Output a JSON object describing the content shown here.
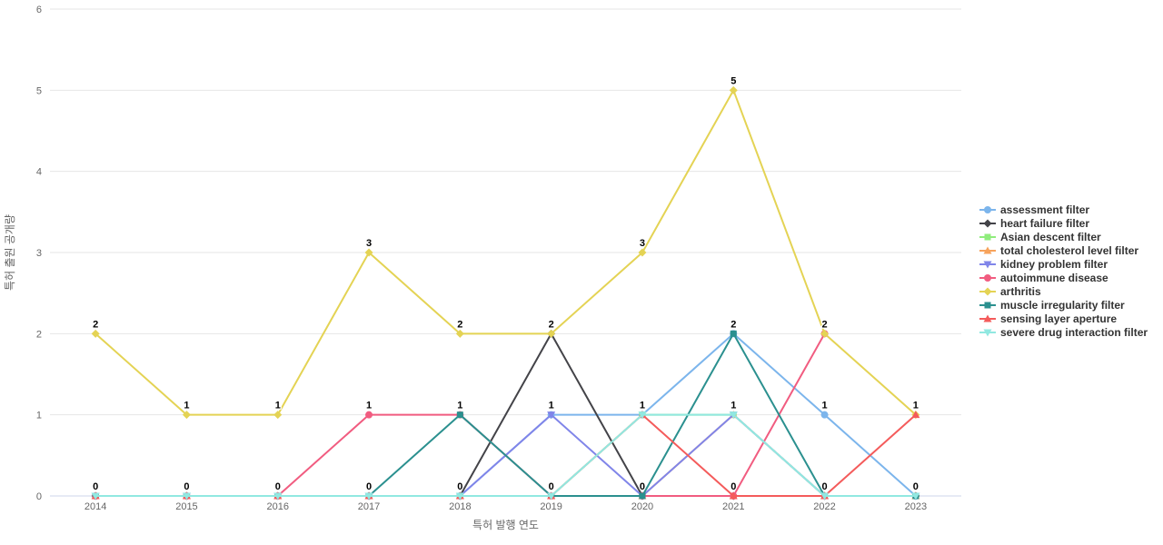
{
  "chart_data": {
    "type": "line",
    "title": "",
    "xlabel": "특허 발행 연도",
    "ylabel": "특허 출원 공개량",
    "categories": [
      "2014",
      "2015",
      "2016",
      "2017",
      "2018",
      "2019",
      "2020",
      "2021",
      "2022",
      "2023"
    ],
    "ylim": [
      0,
      6
    ],
    "yticks": [
      0,
      1,
      2,
      3,
      4,
      5,
      6
    ],
    "grid": true,
    "legend_position": "right",
    "data_labels": true,
    "series": [
      {
        "name": "assessment filter",
        "color": "#7cb5ec",
        "marker": "circle",
        "values": [
          0,
          0,
          0,
          0,
          0,
          1,
          1,
          2,
          1,
          0
        ]
      },
      {
        "name": "heart failure filter",
        "color": "#434348",
        "marker": "diamond",
        "values": [
          0,
          0,
          0,
          0,
          0,
          2,
          0,
          0,
          0,
          0
        ]
      },
      {
        "name": "Asian descent filter",
        "color": "#90ed7d",
        "marker": "square",
        "values": [
          0,
          0,
          0,
          0,
          0,
          0,
          1,
          1,
          0,
          0
        ]
      },
      {
        "name": "total cholesterol level filter",
        "color": "#f7a35c",
        "marker": "triangle",
        "values": [
          0,
          0,
          0,
          0,
          0,
          0,
          0,
          1,
          0,
          0
        ]
      },
      {
        "name": "kidney problem filter",
        "color": "#8085e9",
        "marker": "triangle-down",
        "values": [
          0,
          0,
          0,
          0,
          0,
          1,
          0,
          1,
          0,
          0
        ]
      },
      {
        "name": "autoimmune disease",
        "color": "#f15c80",
        "marker": "circle",
        "values": [
          0,
          0,
          0,
          1,
          1,
          0,
          0,
          0,
          2,
          null
        ]
      },
      {
        "name": "arthritis",
        "color": "#e4d354",
        "marker": "diamond",
        "values": [
          2,
          1,
          1,
          3,
          2,
          2,
          3,
          5,
          2,
          1
        ]
      },
      {
        "name": "muscle irregularity filter",
        "color": "#2b908f",
        "marker": "square",
        "values": [
          0,
          0,
          0,
          0,
          1,
          0,
          0,
          2,
          0,
          0
        ]
      },
      {
        "name": "sensing layer aperture",
        "color": "#f45b5b",
        "marker": "triangle",
        "values": [
          0,
          0,
          0,
          0,
          0,
          0,
          1,
          0,
          0,
          1
        ]
      },
      {
        "name": "severe drug interaction filter",
        "color": "#91e8e1",
        "marker": "triangle-down",
        "values": [
          0,
          0,
          0,
          0,
          0,
          0,
          1,
          1,
          0,
          0
        ]
      }
    ],
    "colors": {
      "grid_line": "#e6e6e6",
      "axis_line": "#ccd6eb",
      "tick_text": "#666666",
      "axis_title_text": "#666666",
      "data_label_text": "#000000",
      "legend_text": "#333333",
      "background": "#ffffff"
    }
  }
}
